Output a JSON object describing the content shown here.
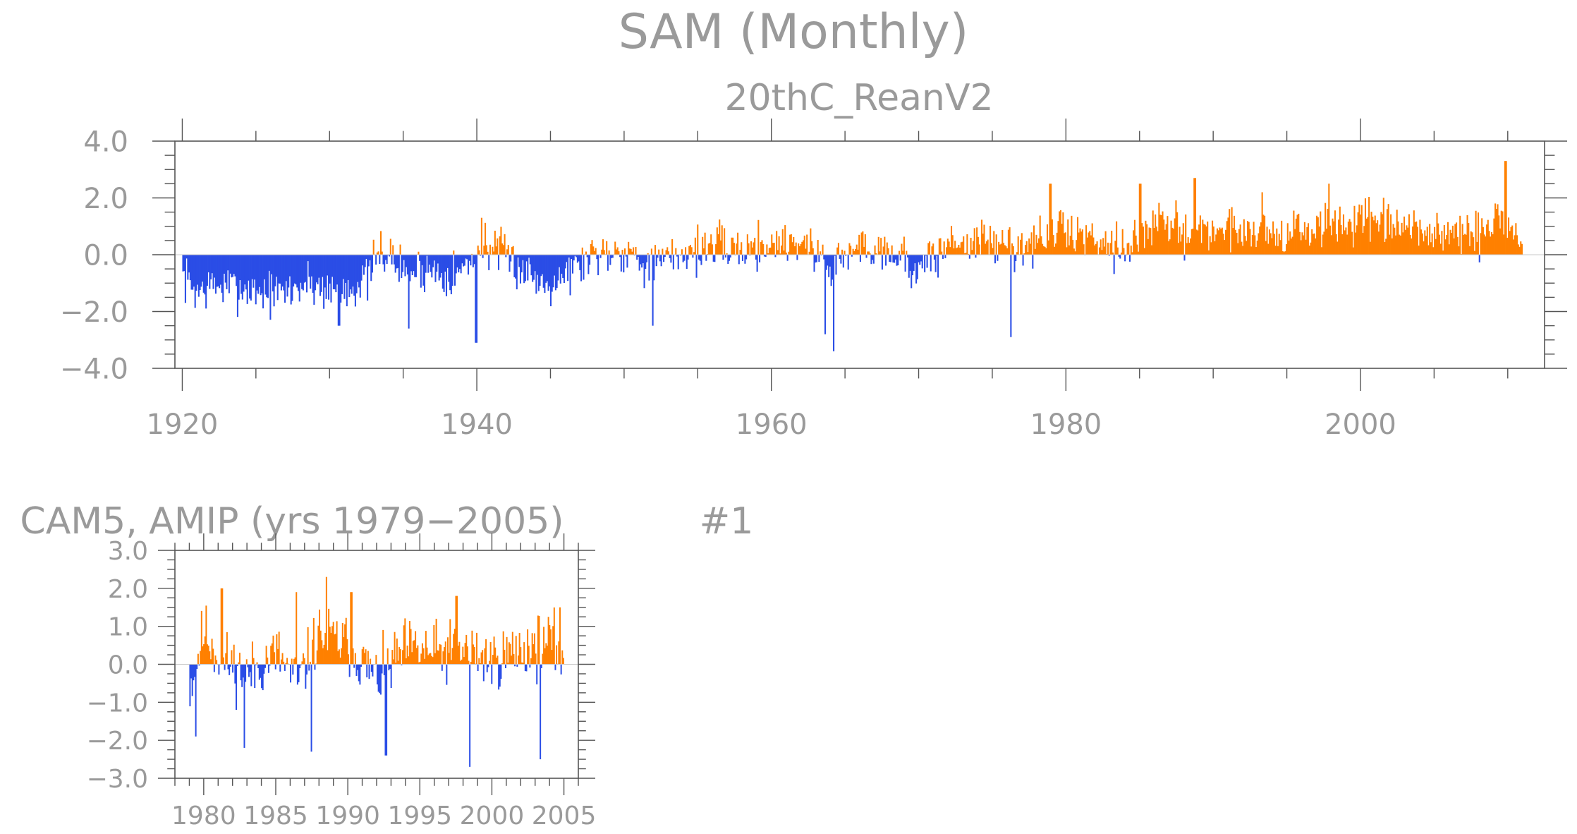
{
  "title": "SAM (Monthly)",
  "colors": {
    "positive": "#ff8000",
    "negative": "#2a4de6",
    "text": "#9a9a9a",
    "frame": "#555555"
  },
  "chart_data": [
    {
      "type": "bar",
      "title": "20thC_ReanV2",
      "x_range": [
        1920.0,
        2011.0
      ],
      "xlim": [
        1919.5,
        2012.5
      ],
      "ylim": [
        -4.0,
        4.0
      ],
      "x_ticks": [
        1920,
        1940,
        1960,
        1980,
        2000
      ],
      "x_tick_labels": [
        "1920",
        "1940",
        "1960",
        "1980",
        "2000"
      ],
      "y_ticks": [
        4.0,
        2.0,
        0.0,
        -2.0,
        -4.0
      ],
      "y_tick_labels": [
        "4.0",
        "2.0",
        "0.0",
        "−2.0",
        "−4.0"
      ],
      "series_anchors": {
        "x": [
          1920.0,
          1921.0,
          1922.0,
          1924.5,
          1926.5,
          1928.5,
          1930.5,
          1932.5,
          1933.5,
          1935.0,
          1936.5,
          1938.5,
          1939.5,
          1940.5,
          1942.5,
          1944.5,
          1946.5,
          1948.0,
          1950.0,
          1952.0,
          1954.0,
          1956.0,
          1958.0,
          1960.0,
          1962.0,
          1964.0,
          1966.0,
          1968.0,
          1970.0,
          1972.0,
          1974.0,
          1976.0,
          1978.0,
          1979.5,
          1982.0,
          1984.0,
          1986.0,
          1988.5,
          1990.5,
          1993.0,
          1995.0,
          1997.5,
          2000.0,
          2002.5,
          2005.0,
          2008.0,
          2009.5,
          2011.0
        ],
        "y": [
          -0.8,
          -1.3,
          -1.1,
          -1.2,
          -1.4,
          -1.0,
          -1.3,
          -0.9,
          0.2,
          -0.6,
          -0.5,
          -0.7,
          -0.3,
          0.4,
          -0.3,
          -1.0,
          -0.5,
          0.1,
          0.2,
          -0.4,
          0.1,
          0.3,
          0.2,
          0.4,
          0.5,
          -0.4,
          0.3,
          0.2,
          -0.6,
          0.4,
          0.5,
          0.3,
          0.4,
          0.9,
          0.6,
          0.3,
          1.1,
          0.8,
          0.9,
          0.9,
          0.7,
          1.0,
          1.2,
          0.9,
          0.8,
          0.6,
          1.4,
          0.5
        ]
      },
      "extremes": [
        {
          "x": 1930.6,
          "y": -2.5
        },
        {
          "x": 1935.3,
          "y": -2.6
        },
        {
          "x": 1939.9,
          "y": -3.1
        },
        {
          "x": 1951.9,
          "y": -2.5
        },
        {
          "x": 1963.6,
          "y": -2.8
        },
        {
          "x": 1964.2,
          "y": -3.4
        },
        {
          "x": 1976.2,
          "y": -2.9
        },
        {
          "x": 1978.9,
          "y": 2.5
        },
        {
          "x": 1985.0,
          "y": 2.5
        },
        {
          "x": 1988.7,
          "y": 2.7
        },
        {
          "x": 1993.3,
          "y": 2.2
        },
        {
          "x": 1997.8,
          "y": 2.5
        },
        {
          "x": 2009.8,
          "y": 3.3
        },
        {
          "x": 1940.3,
          "y": 1.3
        }
      ],
      "n_points": 1104
    },
    {
      "type": "bar",
      "title": "CAM5, AMIP (yrs 1979−2005)",
      "label": "#1",
      "x_range": [
        1979.0,
        2005.0
      ],
      "xlim": [
        1978.0,
        2006.0
      ],
      "ylim": [
        -3.0,
        3.0
      ],
      "x_ticks": [
        1980,
        1985,
        1990,
        1995,
        2000,
        2005
      ],
      "x_tick_labels": [
        "1980",
        "1985",
        "1990",
        "1995",
        "2000",
        "2005"
      ],
      "y_ticks": [
        3.0,
        2.0,
        1.0,
        0.0,
        -1.0,
        -2.0,
        -3.0
      ],
      "y_tick_labels": [
        "3.0",
        "2.0",
        "1.0",
        "0.0",
        "−1.0",
        "−2.0",
        "−3.0"
      ],
      "series_anchors": {
        "x": [
          1979.0,
          1980.0,
          1981.0,
          1983.0,
          1985.0,
          1986.5,
          1988.0,
          1990.0,
          1992.0,
          1994.0,
          1996.0,
          1998.0,
          2000.0,
          2002.0,
          2004.0,
          2005.0
        ],
        "y": [
          -0.6,
          0.9,
          0.2,
          -0.3,
          0.3,
          -0.5,
          0.8,
          0.5,
          -0.4,
          0.4,
          0.3,
          0.4,
          0.1,
          0.4,
          0.6,
          0.2
        ]
      },
      "extremes": [
        {
          "x": 1979.4,
          "y": -1.9
        },
        {
          "x": 1981.2,
          "y": 2.0
        },
        {
          "x": 1982.8,
          "y": -2.2
        },
        {
          "x": 1986.4,
          "y": 1.9
        },
        {
          "x": 1987.4,
          "y": -2.3
        },
        {
          "x": 1988.5,
          "y": 2.3
        },
        {
          "x": 1990.2,
          "y": 1.9
        },
        {
          "x": 1992.6,
          "y": -2.4
        },
        {
          "x": 1997.5,
          "y": 1.8
        },
        {
          "x": 1998.4,
          "y": -2.7
        },
        {
          "x": 2003.3,
          "y": -2.5
        },
        {
          "x": 2004.7,
          "y": 1.5
        }
      ],
      "n_points": 324
    }
  ]
}
